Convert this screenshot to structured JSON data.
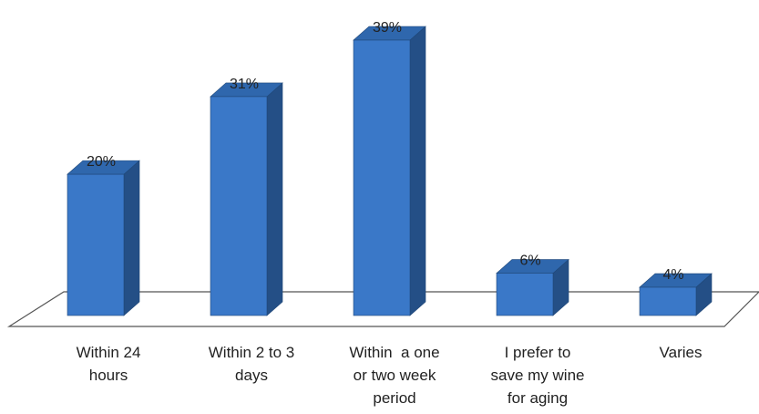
{
  "chart_data": {
    "type": "bar",
    "categories": [
      [
        "Within 24",
        "hours"
      ],
      [
        "Within 2 to 3",
        "days"
      ],
      [
        "Within  a one",
        "or two week",
        "period"
      ],
      [
        "I prefer to",
        "save my wine",
        "for aging"
      ],
      [
        "Varies"
      ]
    ],
    "values": [
      20,
      31,
      39,
      6,
      4
    ],
    "data_labels": [
      "20%",
      "31%",
      "39%",
      "6%",
      "4%"
    ],
    "ylim": [
      0,
      39
    ],
    "grid": false,
    "legend": "none",
    "colors": {
      "front": "#3a78c8",
      "side": "#244f86",
      "top": "#2f67ad",
      "edge": "#1f4778",
      "floor_stroke": "#555555"
    }
  }
}
